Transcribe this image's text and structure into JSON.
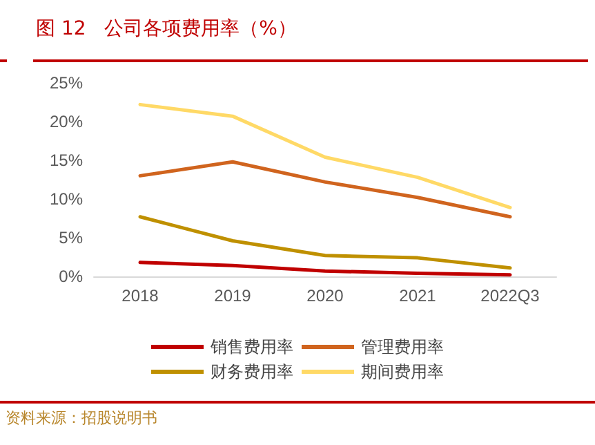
{
  "chart_data": {
    "type": "line",
    "title": "图 12   公司各项费用率（%）",
    "categories": [
      "2018",
      "2019",
      "2020",
      "2021",
      "2022Q3"
    ],
    "series": [
      {
        "name": "销售费用率",
        "color": "#c00000",
        "values": [
          1.8,
          1.4,
          0.7,
          0.4,
          0.2
        ]
      },
      {
        "name": "管理费用率",
        "color": "#d0641e",
        "values": [
          13.0,
          14.8,
          12.2,
          10.2,
          7.7
        ]
      },
      {
        "name": "财务费用率",
        "color": "#bf9000",
        "values": [
          7.7,
          4.6,
          2.7,
          2.4,
          1.1
        ]
      },
      {
        "name": "期间费用率",
        "color": "#ffd966",
        "values": [
          22.2,
          20.7,
          15.4,
          12.8,
          8.9
        ]
      }
    ],
    "ylim": [
      0,
      25
    ],
    "yticks": [
      {
        "value": 0,
        "label": "0%"
      },
      {
        "value": 5,
        "label": "5%"
      },
      {
        "value": 10,
        "label": "10%"
      },
      {
        "value": 15,
        "label": "15%"
      },
      {
        "value": 20,
        "label": "20%"
      },
      {
        "value": 25,
        "label": "25%"
      }
    ],
    "grid": false,
    "legend": "bottom",
    "marker": "none",
    "line_style": "solid",
    "annotations": [
      "资料来源：招股说明书"
    ]
  }
}
